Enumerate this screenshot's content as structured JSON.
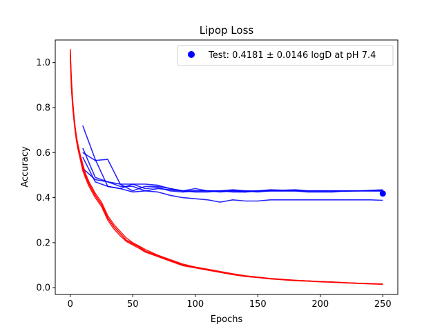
{
  "chart_data": {
    "type": "line",
    "title": "Lipop Loss",
    "xlabel": "Epochs",
    "ylabel": "Accuracy",
    "xlim": [
      -12,
      262
    ],
    "ylim": [
      -0.03,
      1.1
    ],
    "xticks": [
      0,
      50,
      100,
      150,
      200,
      250
    ],
    "yticks": [
      0.0,
      0.2,
      0.4,
      0.6,
      0.8,
      1.0
    ],
    "grid": false,
    "legend_placement": "top-right",
    "legend": [
      {
        "label": "Test: 0.4181 ± 0.0146 logD at pH 7.4",
        "color": "#0000ff",
        "marker": "circle"
      }
    ],
    "train_color": "#ff0000",
    "val_color": "#0000ff",
    "train_series": [
      {
        "x": [
          0,
          1,
          2,
          3,
          4,
          5,
          6,
          8,
          10,
          12,
          15,
          18,
          20,
          25,
          30,
          35,
          40,
          45,
          50,
          55,
          60,
          70,
          80,
          90,
          100,
          110,
          120,
          130,
          140,
          150,
          160,
          170,
          180,
          190,
          200,
          210,
          220,
          230,
          240,
          250
        ],
        "y": [
          1.06,
          0.9,
          0.82,
          0.75,
          0.7,
          0.66,
          0.63,
          0.58,
          0.53,
          0.5,
          0.46,
          0.43,
          0.41,
          0.37,
          0.31,
          0.27,
          0.24,
          0.21,
          0.195,
          0.18,
          0.16,
          0.14,
          0.12,
          0.1,
          0.09,
          0.08,
          0.07,
          0.06,
          0.05,
          0.046,
          0.04,
          0.036,
          0.032,
          0.03,
          0.027,
          0.025,
          0.022,
          0.02,
          0.018,
          0.016
        ]
      },
      {
        "x": [
          0,
          1,
          2,
          3,
          4,
          5,
          6,
          8,
          10,
          12,
          15,
          18,
          20,
          25,
          30,
          35,
          40,
          45,
          50,
          55,
          60,
          70,
          80,
          90,
          100,
          110,
          120,
          130,
          140,
          150,
          160,
          170,
          180,
          190,
          200,
          210,
          220,
          230,
          240,
          250
        ],
        "y": [
          1.05,
          0.92,
          0.83,
          0.76,
          0.71,
          0.67,
          0.64,
          0.59,
          0.55,
          0.51,
          0.47,
          0.44,
          0.42,
          0.38,
          0.32,
          0.28,
          0.25,
          0.22,
          0.2,
          0.185,
          0.17,
          0.145,
          0.125,
          0.105,
          0.092,
          0.082,
          0.072,
          0.062,
          0.053,
          0.047,
          0.041,
          0.037,
          0.033,
          0.03,
          0.027,
          0.025,
          0.022,
          0.02,
          0.018,
          0.015
        ]
      },
      {
        "x": [
          0,
          1,
          2,
          3,
          4,
          5,
          6,
          8,
          10,
          12,
          15,
          18,
          20,
          25,
          30,
          35,
          40,
          45,
          50,
          55,
          60,
          70,
          80,
          90,
          100,
          110,
          120,
          130,
          140,
          150,
          160,
          170,
          180,
          190,
          200,
          210,
          220,
          230,
          240,
          250
        ],
        "y": [
          1.04,
          0.88,
          0.8,
          0.74,
          0.69,
          0.65,
          0.62,
          0.57,
          0.52,
          0.49,
          0.45,
          0.42,
          0.4,
          0.36,
          0.3,
          0.26,
          0.23,
          0.205,
          0.19,
          0.175,
          0.158,
          0.138,
          0.118,
          0.098,
          0.088,
          0.078,
          0.068,
          0.058,
          0.05,
          0.045,
          0.039,
          0.035,
          0.031,
          0.029,
          0.026,
          0.024,
          0.021,
          0.019,
          0.017,
          0.015
        ]
      },
      {
        "x": [
          0,
          1,
          2,
          3,
          4,
          5,
          6,
          8,
          10,
          12,
          15,
          18,
          20,
          25,
          30,
          35,
          40,
          45,
          50,
          55,
          60,
          70,
          80,
          90,
          100,
          110,
          120,
          130,
          140,
          150,
          160,
          170,
          180,
          190,
          200,
          210,
          220,
          230,
          240,
          250
        ],
        "y": [
          1.03,
          0.89,
          0.81,
          0.75,
          0.7,
          0.66,
          0.62,
          0.58,
          0.54,
          0.5,
          0.46,
          0.43,
          0.41,
          0.37,
          0.31,
          0.27,
          0.24,
          0.21,
          0.197,
          0.182,
          0.163,
          0.142,
          0.121,
          0.101,
          0.09,
          0.079,
          0.069,
          0.059,
          0.051,
          0.046,
          0.04,
          0.036,
          0.032,
          0.03,
          0.027,
          0.025,
          0.022,
          0.02,
          0.018,
          0.016
        ]
      }
    ],
    "val_series": [
      {
        "x": [
          10,
          20,
          30,
          40,
          50,
          60,
          70,
          80,
          90,
          100,
          110,
          120,
          130,
          140,
          150,
          160,
          170,
          180,
          190,
          200,
          210,
          220,
          230,
          240,
          250
        ],
        "y": [
          0.72,
          0.57,
          0.45,
          0.44,
          0.46,
          0.44,
          0.445,
          0.43,
          0.425,
          0.43,
          0.43,
          0.425,
          0.43,
          0.425,
          0.43,
          0.43,
          0.43,
          0.43,
          0.43,
          0.43,
          0.43,
          0.428,
          0.43,
          0.43,
          0.43
        ]
      },
      {
        "x": [
          10,
          20,
          30,
          40,
          50,
          60,
          70,
          80,
          90,
          100,
          110,
          120,
          130,
          140,
          150,
          160,
          170,
          180,
          190,
          200,
          210,
          220,
          230,
          240,
          250
        ],
        "y": [
          0.6,
          0.565,
          0.57,
          0.46,
          0.43,
          0.45,
          0.45,
          0.44,
          0.43,
          0.44,
          0.43,
          0.43,
          0.425,
          0.425,
          0.43,
          0.435,
          0.433,
          0.435,
          0.43,
          0.43,
          0.43,
          0.43,
          0.43,
          0.43,
          0.43
        ]
      },
      {
        "x": [
          10,
          20,
          30,
          40,
          50,
          60,
          70,
          80,
          90,
          100,
          110,
          120,
          130,
          140,
          150,
          160,
          170,
          180,
          190,
          200,
          210,
          220,
          230,
          240,
          250
        ],
        "y": [
          0.62,
          0.49,
          0.47,
          0.45,
          0.45,
          0.43,
          0.425,
          0.41,
          0.4,
          0.395,
          0.39,
          0.38,
          0.39,
          0.385,
          0.385,
          0.39,
          0.39,
          0.39,
          0.39,
          0.39,
          0.39,
          0.39,
          0.39,
          0.39,
          0.388
        ]
      },
      {
        "x": [
          10,
          20,
          30,
          40,
          50,
          60,
          70,
          80,
          90,
          100,
          110,
          120,
          130,
          140,
          150,
          160,
          170,
          180,
          190,
          200,
          210,
          220,
          230,
          240,
          250
        ],
        "y": [
          0.53,
          0.48,
          0.47,
          0.46,
          0.46,
          0.46,
          0.455,
          0.44,
          0.43,
          0.425,
          0.425,
          0.43,
          0.435,
          0.43,
          0.425,
          0.43,
          0.43,
          0.43,
          0.425,
          0.425,
          0.425,
          0.43,
          0.43,
          0.432,
          0.435
        ]
      },
      {
        "x": [
          10,
          20,
          30,
          40,
          50,
          60,
          70,
          80,
          90,
          100,
          110,
          120,
          130,
          140,
          150,
          160,
          170,
          180,
          190,
          200,
          210,
          220,
          230,
          240,
          250
        ],
        "y": [
          0.58,
          0.47,
          0.45,
          0.44,
          0.425,
          0.43,
          0.44,
          0.435,
          0.43,
          0.43,
          0.43,
          0.43,
          0.43,
          0.43,
          0.43,
          0.43,
          0.43,
          0.43,
          0.43,
          0.43,
          0.43,
          0.43,
          0.43,
          0.43,
          0.43
        ]
      }
    ],
    "test_point": {
      "x": 250,
      "y": 0.4181
    }
  }
}
